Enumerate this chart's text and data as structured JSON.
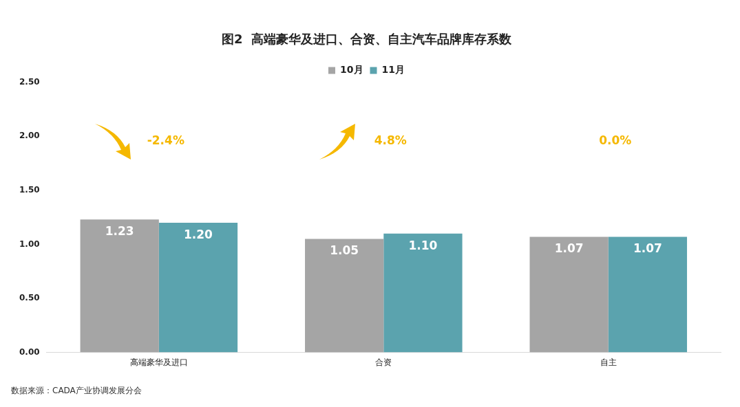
{
  "chart_data": {
    "type": "bar",
    "title": "图2  高端豪华及进口、合资、自主汽车品牌库存系数",
    "categories": [
      "高端豪华及进口",
      "合资",
      "自主"
    ],
    "series": [
      {
        "name": "10月",
        "color": "#a5a5a5",
        "values": [
          1.23,
          1.05,
          1.07
        ],
        "value_labels": [
          "1.23",
          "1.05",
          "1.07"
        ]
      },
      {
        "name": "11月",
        "color": "#5ba3ae",
        "values": [
          1.2,
          1.1,
          1.07
        ],
        "value_labels": [
          "1.20",
          "1.10",
          "1.07"
        ]
      }
    ],
    "ylim": [
      0,
      2.5
    ],
    "yticks": [
      {
        "value": 0,
        "label": "0.00"
      },
      {
        "value": 0.5,
        "label": "0.50"
      },
      {
        "value": 1,
        "label": "1.00"
      },
      {
        "value": 1.5,
        "label": "1.50"
      },
      {
        "value": 2,
        "label": "2.00"
      },
      {
        "value": 2.5,
        "label": "2.50"
      }
    ],
    "grid": false,
    "legend": "top",
    "annotations": [
      "-2.4%",
      "4.8%",
      "0.0%",
      "数据来源：CADA产业协调发展分会"
    ]
  }
}
